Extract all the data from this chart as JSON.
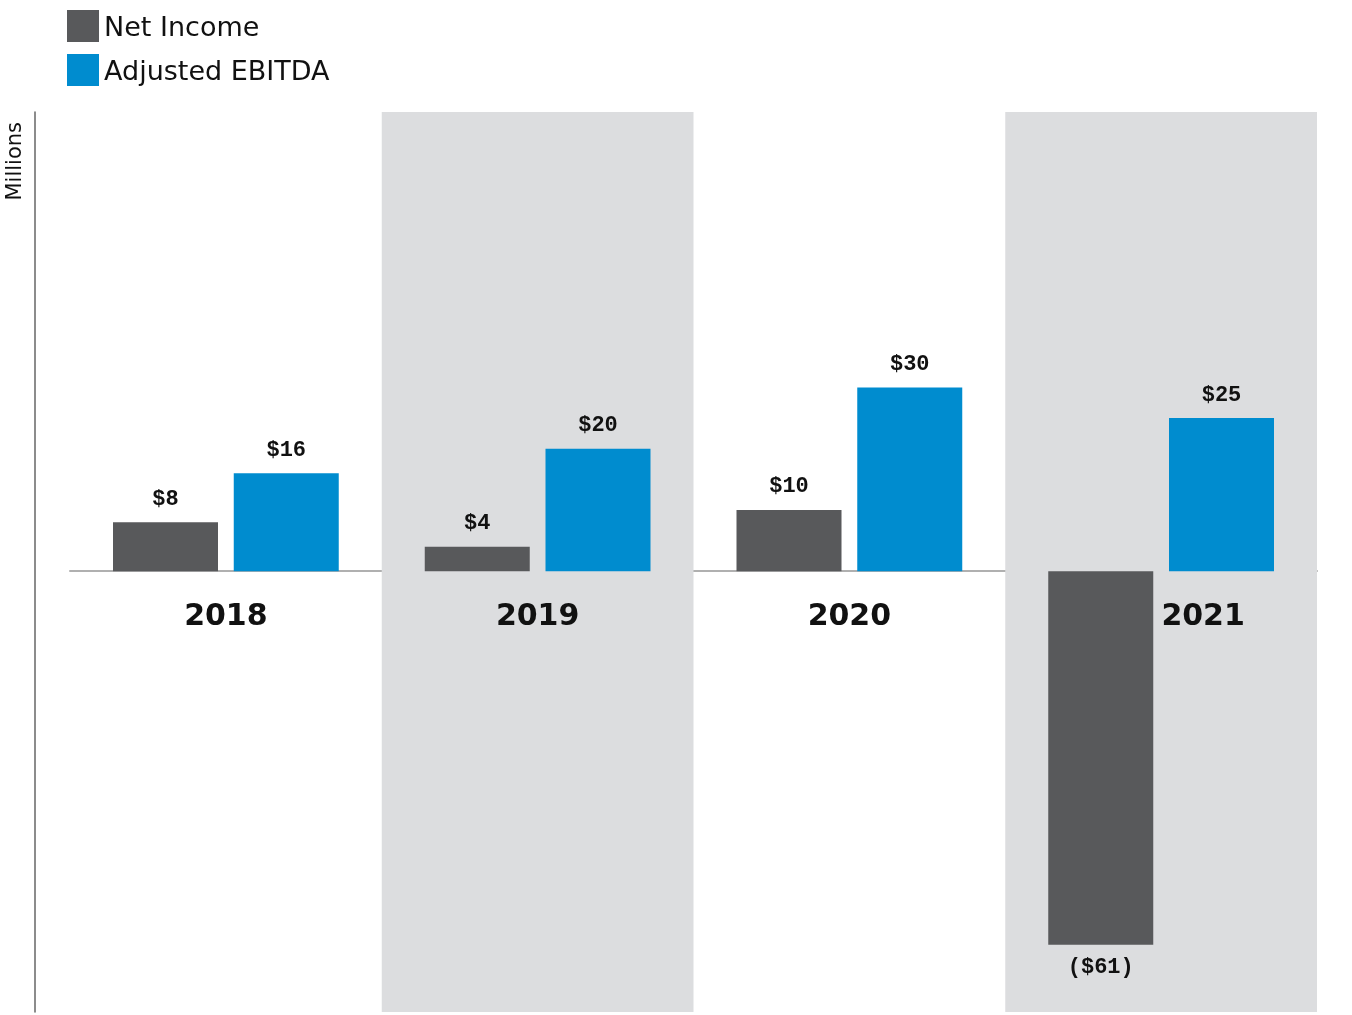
{
  "chart_data": {
    "type": "bar",
    "annotations": [
      "Millions"
    ],
    "categories": [
      "2018",
      "2019",
      "2020",
      "2021"
    ],
    "series": [
      {
        "name": "Net Income",
        "color": "#58595b",
        "values": [
          8,
          4,
          10,
          -61
        ],
        "value_labels": [
          "$8",
          "$4",
          "$10",
          "($61)"
        ]
      },
      {
        "name": "Adjusted EBITDA",
        "color": "#008ccf",
        "values": [
          16,
          20,
          30,
          25
        ],
        "value_labels": [
          "$16",
          "$20",
          "$30",
          "$25"
        ]
      }
    ],
    "bands": [
      {
        "axis": "x",
        "from": "2019",
        "to": "2019",
        "color": "#dcdddf"
      },
      {
        "axis": "x",
        "from": "2021",
        "to": "2021",
        "color": "#dcdddf"
      }
    ],
    "legend": "top left",
    "grid": false
  }
}
